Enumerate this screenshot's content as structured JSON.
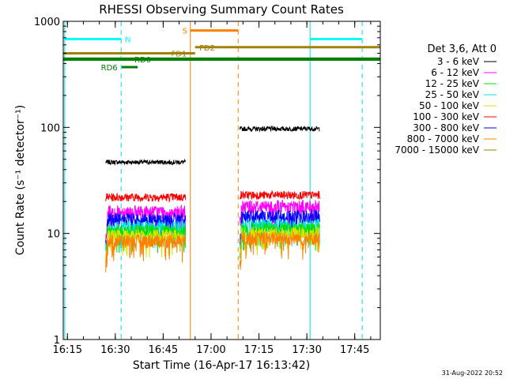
{
  "chart_data": {
    "type": "line",
    "title": "RHESSI Observing Summary Count Rates",
    "xlabel": "Start Time (16-Apr-17 16:13:42)",
    "ylabel": "Count Rate (s⁻¹ detector⁻¹)",
    "yscale": "log",
    "ylim": [
      1,
      1000
    ],
    "xlim": [
      "16:13:42",
      "17:53:00"
    ],
    "x_ticks": [
      "16:15",
      "16:30",
      "16:45",
      "17:00",
      "17:15",
      "17:30",
      "17:45"
    ],
    "y_ticks": [
      "1",
      "10",
      "100",
      "1000"
    ],
    "timestamp": "31-Aug-2022 20:52",
    "legend": {
      "title": "Det 3,6, Att 0",
      "position": "right",
      "entries": [
        {
          "label": "3 - 6 keV",
          "color": "#000000"
        },
        {
          "label": "6 - 12 keV",
          "color": "#ff00ff"
        },
        {
          "label": "12 - 25 keV",
          "color": "#00e000"
        },
        {
          "label": "25 - 50 keV",
          "color": "#00e0e0"
        },
        {
          "label": "50 - 100 keV",
          "color": "#e0e000"
        },
        {
          "label": "100 - 300 keV",
          "color": "#ff0000"
        },
        {
          "label": "300 - 800 keV",
          "color": "#0000ff"
        },
        {
          "label": "800 - 7000 keV",
          "color": "#ff8000"
        },
        {
          "label": "7000 - 15000 keV",
          "color": "#a08000"
        }
      ]
    },
    "segments": [
      {
        "start": "16:27",
        "end": "16:52"
      },
      {
        "start": "17:09",
        "end": "17:34"
      }
    ],
    "series": [
      {
        "name": "3 - 6 keV",
        "color": "#000000",
        "levels": [
          47,
          97
        ]
      },
      {
        "name": "100 - 300 keV",
        "color": "#ff0000",
        "levels": [
          22,
          23
        ]
      },
      {
        "name": "6 - 12 keV",
        "color": "#ff00ff",
        "levels": [
          16,
          18
        ]
      },
      {
        "name": "300 - 800 keV",
        "color": "#0000ff",
        "levels": [
          13.5,
          14.5
        ]
      },
      {
        "name": "25 - 50 keV",
        "color": "#00e0e0",
        "levels": [
          11.5,
          12
        ]
      },
      {
        "name": "12 - 25 keV",
        "color": "#00e000",
        "levels": [
          10.5,
          11
        ]
      },
      {
        "name": "50 - 100 keV",
        "color": "#e0e000",
        "levels": [
          9.5,
          10
        ]
      },
      {
        "name": "800 - 7000 keV",
        "color": "#ff8000",
        "levels": [
          8.5,
          9
        ]
      }
    ],
    "vertical_markers": [
      {
        "time": "16:14:10",
        "color": "#00e0e0",
        "style": "solid"
      },
      {
        "time": "16:31:50",
        "color": "#00e0e0",
        "style": "dashed"
      },
      {
        "time": "16:53:30",
        "color": "#ff8000",
        "style": "solid"
      },
      {
        "time": "17:08:30",
        "color": "#ff8000",
        "style": "dashed"
      },
      {
        "time": "17:31:00",
        "color": "#00e0e0",
        "style": "solid"
      },
      {
        "time": "17:47:20",
        "color": "#00e0e0",
        "style": "dashed"
      }
    ],
    "flag_bars": [
      {
        "label": "N",
        "color": "#00ffff",
        "y": 680,
        "start": "16:14:00",
        "end": "16:31:50",
        "label_time": "16:33:00"
      },
      {
        "label": "N",
        "color": "#00ffff",
        "y": 680,
        "start": "17:31:00",
        "end": "17:47:20",
        "label_time": ""
      },
      {
        "label": "S",
        "color": "#ff8000",
        "y": 820,
        "start": "16:53:30",
        "end": "17:08:30",
        "label_time": "16:51:00"
      },
      {
        "label": "FD1",
        "color": "#a08000",
        "y": 500,
        "start": "16:13:42",
        "end": "16:55:00",
        "label_time": "16:47:30"
      },
      {
        "label": "FD2",
        "color": "#a08000",
        "y": 570,
        "start": "16:55:00",
        "end": "17:53:00",
        "label_time": "16:56:20"
      },
      {
        "label": "RD6",
        "color": "#008000",
        "y": 370,
        "start": "16:32:00",
        "end": "16:37:00",
        "label_time": "16:25:30"
      },
      {
        "label": "RD0",
        "color": "#008000",
        "y": 440,
        "start": "16:13:42",
        "end": "17:53:00",
        "label_time": "16:36:00"
      },
      {
        "label": "",
        "color": "#008000",
        "y": 440,
        "start": "16:13:42",
        "end": "17:53:00",
        "label_time": ""
      }
    ]
  }
}
